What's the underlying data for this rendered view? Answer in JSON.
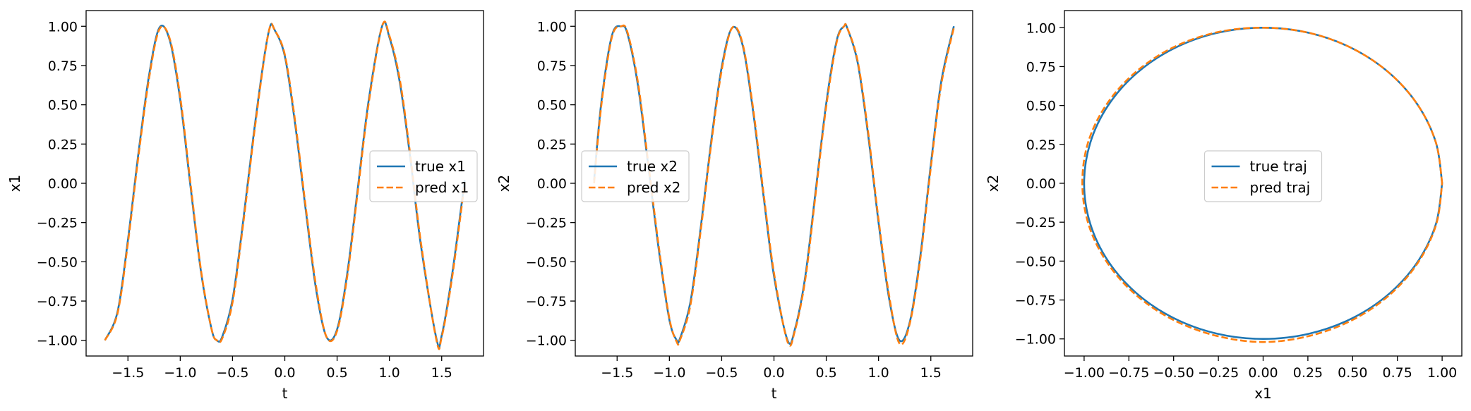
{
  "colors": {
    "true_series": "#1f77b4",
    "pred_series": "#ff7f0e",
    "axes": "#000000",
    "legend_border": "#cccccc",
    "background": "#ffffff"
  },
  "chart_data": [
    {
      "type": "line",
      "xlabel": "t",
      "ylabel": "x1",
      "xlim": [
        -1.9,
        1.9
      ],
      "ylim": [
        -1.1,
        1.1
      ],
      "xticks": [
        -1.5,
        -1.0,
        -0.5,
        0.0,
        0.5,
        1.0,
        1.5
      ],
      "xtick_labels": [
        "−1.5",
        "−1.0",
        "−0.5",
        "0.0",
        "0.5",
        "1.0",
        "1.5"
      ],
      "yticks": [
        1.0,
        0.75,
        0.5,
        0.25,
        0.0,
        -0.25,
        -0.5,
        -0.75,
        -1.0
      ],
      "ytick_labels": [
        "1.00",
        "0.75",
        "0.50",
        "0.25",
        "0.00",
        "−0.25",
        "−0.50",
        "−0.75",
        "−1.00"
      ],
      "grid": false,
      "legend_position": "center-right",
      "series": [
        {
          "name": "true x1",
          "style": "solid",
          "x": [
            -1.72,
            -1.6,
            -1.5,
            -1.4,
            -1.3,
            -1.2,
            -1.1,
            -1.0,
            -0.9,
            -0.8,
            -0.7,
            -0.65,
            -0.6,
            -0.5,
            -0.4,
            -0.3,
            -0.2,
            -0.14,
            -0.1,
            0.0,
            0.1,
            0.2,
            0.3,
            0.4,
            0.5,
            0.6,
            0.7,
            0.8,
            0.93,
            1.0,
            1.1,
            1.2,
            1.3,
            1.45,
            1.5,
            1.6,
            1.72
          ],
          "y": [
            -1.0,
            -0.82,
            -0.36,
            0.19,
            0.68,
            0.99,
            0.91,
            0.53,
            -0.03,
            -0.57,
            -0.93,
            -1.0,
            -0.98,
            -0.74,
            -0.25,
            0.3,
            0.79,
            1.0,
            0.98,
            0.81,
            0.37,
            -0.17,
            -0.68,
            -0.98,
            -0.93,
            -0.56,
            -0.02,
            0.52,
            1.0,
            0.93,
            0.64,
            0.16,
            -0.39,
            -0.99,
            -0.97,
            -0.58,
            0.02
          ]
        },
        {
          "name": "pred x1",
          "style": "dashed",
          "x": [
            -1.72,
            -1.6,
            -1.5,
            -1.4,
            -1.3,
            -1.2,
            -1.1,
            -1.0,
            -0.9,
            -0.8,
            -0.7,
            -0.65,
            -0.6,
            -0.5,
            -0.4,
            -0.3,
            -0.2,
            -0.14,
            -0.1,
            0.0,
            0.1,
            0.2,
            0.3,
            0.4,
            0.5,
            0.6,
            0.7,
            0.8,
            0.93,
            1.0,
            1.1,
            1.2,
            1.3,
            1.45,
            1.5,
            1.6,
            1.72
          ],
          "y": [
            -1.0,
            -0.83,
            -0.38,
            0.17,
            0.66,
            0.98,
            0.92,
            0.55,
            -0.01,
            -0.56,
            -0.93,
            -1.0,
            -0.99,
            -0.76,
            -0.27,
            0.28,
            0.78,
            1.0,
            0.98,
            0.82,
            0.39,
            -0.15,
            -0.66,
            -0.98,
            -0.94,
            -0.58,
            -0.04,
            0.5,
            1.0,
            0.94,
            0.66,
            0.18,
            -0.37,
            -1.0,
            -0.98,
            -0.6,
            0.0
          ]
        }
      ]
    },
    {
      "type": "line",
      "xlabel": "t",
      "ylabel": "x2",
      "xlim": [
        -1.9,
        1.9
      ],
      "ylim": [
        -1.1,
        1.1
      ],
      "xticks": [
        -1.5,
        -1.0,
        -0.5,
        0.0,
        0.5,
        1.0,
        1.5
      ],
      "xtick_labels": [
        "−1.5",
        "−1.0",
        "−0.5",
        "0.0",
        "0.5",
        "1.0",
        "1.5"
      ],
      "yticks": [
        1.0,
        0.75,
        0.5,
        0.25,
        0.0,
        -0.25,
        -0.5,
        -0.75,
        -1.0
      ],
      "ytick_labels": [
        "1.00",
        "0.75",
        "0.50",
        "0.25",
        "0.00",
        "−0.25",
        "−0.50",
        "−0.75",
        "−1.00"
      ],
      "grid": false,
      "legend_position": "center-left",
      "series": [
        {
          "name": "true x2",
          "style": "solid",
          "x": [
            -1.72,
            -1.65,
            -1.55,
            -1.46,
            -1.4,
            -1.3,
            -1.2,
            -1.1,
            -1.0,
            -0.93,
            -0.9,
            -0.8,
            -0.7,
            -0.6,
            -0.5,
            -0.4,
            -0.3,
            -0.2,
            -0.1,
            0.0,
            0.13,
            0.2,
            0.3,
            0.4,
            0.5,
            0.6,
            0.67,
            0.7,
            0.8,
            0.9,
            1.0,
            1.1,
            1.2,
            1.3,
            1.4,
            1.5,
            1.6,
            1.72
          ],
          "y": [
            0.02,
            0.52,
            0.94,
            1.0,
            0.95,
            0.62,
            0.1,
            -0.43,
            -0.87,
            -1.0,
            -0.99,
            -0.76,
            -0.28,
            0.27,
            0.74,
            0.99,
            0.88,
            0.46,
            -0.08,
            -0.59,
            -1.0,
            -0.93,
            -0.59,
            -0.04,
            0.51,
            0.91,
            1.0,
            0.99,
            0.77,
            0.31,
            -0.25,
            -0.73,
            -1.0,
            -0.88,
            -0.46,
            0.12,
            0.65,
            1.0
          ]
        },
        {
          "name": "pred x2",
          "style": "dashed",
          "x": [
            -1.72,
            -1.65,
            -1.55,
            -1.46,
            -1.4,
            -1.3,
            -1.2,
            -1.1,
            -1.0,
            -0.93,
            -0.9,
            -0.8,
            -0.7,
            -0.6,
            -0.5,
            -0.4,
            -0.3,
            -0.2,
            -0.1,
            0.0,
            0.13,
            0.2,
            0.3,
            0.4,
            0.5,
            0.6,
            0.67,
            0.7,
            0.8,
            0.9,
            1.0,
            1.1,
            1.2,
            1.3,
            1.4,
            1.5,
            1.6,
            1.72
          ],
          "y": [
            0.0,
            0.5,
            0.93,
            1.0,
            0.96,
            0.64,
            0.12,
            -0.41,
            -0.86,
            -1.01,
            -1.0,
            -0.78,
            -0.3,
            0.25,
            0.72,
            0.99,
            0.89,
            0.48,
            -0.06,
            -0.57,
            -1.01,
            -0.94,
            -0.61,
            -0.06,
            0.49,
            0.9,
            1.0,
            0.99,
            0.78,
            0.33,
            -0.23,
            -0.71,
            -1.02,
            -0.89,
            -0.48,
            0.1,
            0.63,
            0.99
          ]
        }
      ]
    },
    {
      "type": "line",
      "xlabel": "x1",
      "ylabel": "x2",
      "xlim": [
        -1.11,
        1.11
      ],
      "ylim": [
        -1.11,
        1.11
      ],
      "xticks": [
        -1.0,
        -0.75,
        -0.5,
        -0.25,
        0.0,
        0.25,
        0.5,
        0.75,
        1.0
      ],
      "xtick_labels": [
        "−1.00",
        "−0.75",
        "−0.50",
        "−0.25",
        "0.00",
        "0.25",
        "0.50",
        "0.75",
        "1.00"
      ],
      "yticks": [
        1.0,
        0.75,
        0.5,
        0.25,
        0.0,
        -0.25,
        -0.5,
        -0.75,
        -1.0
      ],
      "ytick_labels": [
        "1.00",
        "0.75",
        "0.50",
        "0.25",
        "0.00",
        "−0.25",
        "−0.50",
        "−0.75",
        "−1.00"
      ],
      "grid": false,
      "legend_position": "center",
      "series": [
        {
          "name": "true traj",
          "style": "solid",
          "x": [
            1.0,
            0.966,
            0.866,
            0.707,
            0.5,
            0.259,
            0.0,
            -0.259,
            -0.5,
            -0.707,
            -0.866,
            -0.966,
            -1.0,
            -0.966,
            -0.866,
            -0.707,
            -0.5,
            -0.259,
            0.0,
            0.259,
            0.5,
            0.707,
            0.866,
            0.966,
            1.0
          ],
          "y": [
            0.0,
            0.259,
            0.5,
            0.707,
            0.866,
            0.966,
            1.0,
            0.966,
            0.866,
            0.707,
            0.5,
            0.259,
            0.0,
            -0.259,
            -0.5,
            -0.707,
            -0.866,
            -0.966,
            -1.0,
            -0.966,
            -0.866,
            -0.707,
            -0.5,
            -0.259,
            0.0
          ]
        },
        {
          "name": "pred traj",
          "style": "dashed",
          "x": [
            1.0,
            0.966,
            0.866,
            0.707,
            0.5,
            0.259,
            0.0,
            -0.26,
            -0.505,
            -0.715,
            -0.876,
            -0.978,
            -1.01,
            -0.976,
            -0.874,
            -0.714,
            -0.505,
            -0.262,
            0.0,
            0.262,
            0.505,
            0.712,
            0.869,
            0.968,
            1.0
          ],
          "y": [
            0.0,
            0.259,
            0.5,
            0.707,
            0.866,
            0.966,
            1.0,
            0.97,
            0.872,
            0.712,
            0.505,
            0.262,
            0.0,
            -0.262,
            -0.505,
            -0.714,
            -0.876,
            -0.98,
            -1.02,
            -0.98,
            -0.875,
            -0.712,
            -0.503,
            -0.26,
            0.0
          ]
        }
      ]
    }
  ]
}
